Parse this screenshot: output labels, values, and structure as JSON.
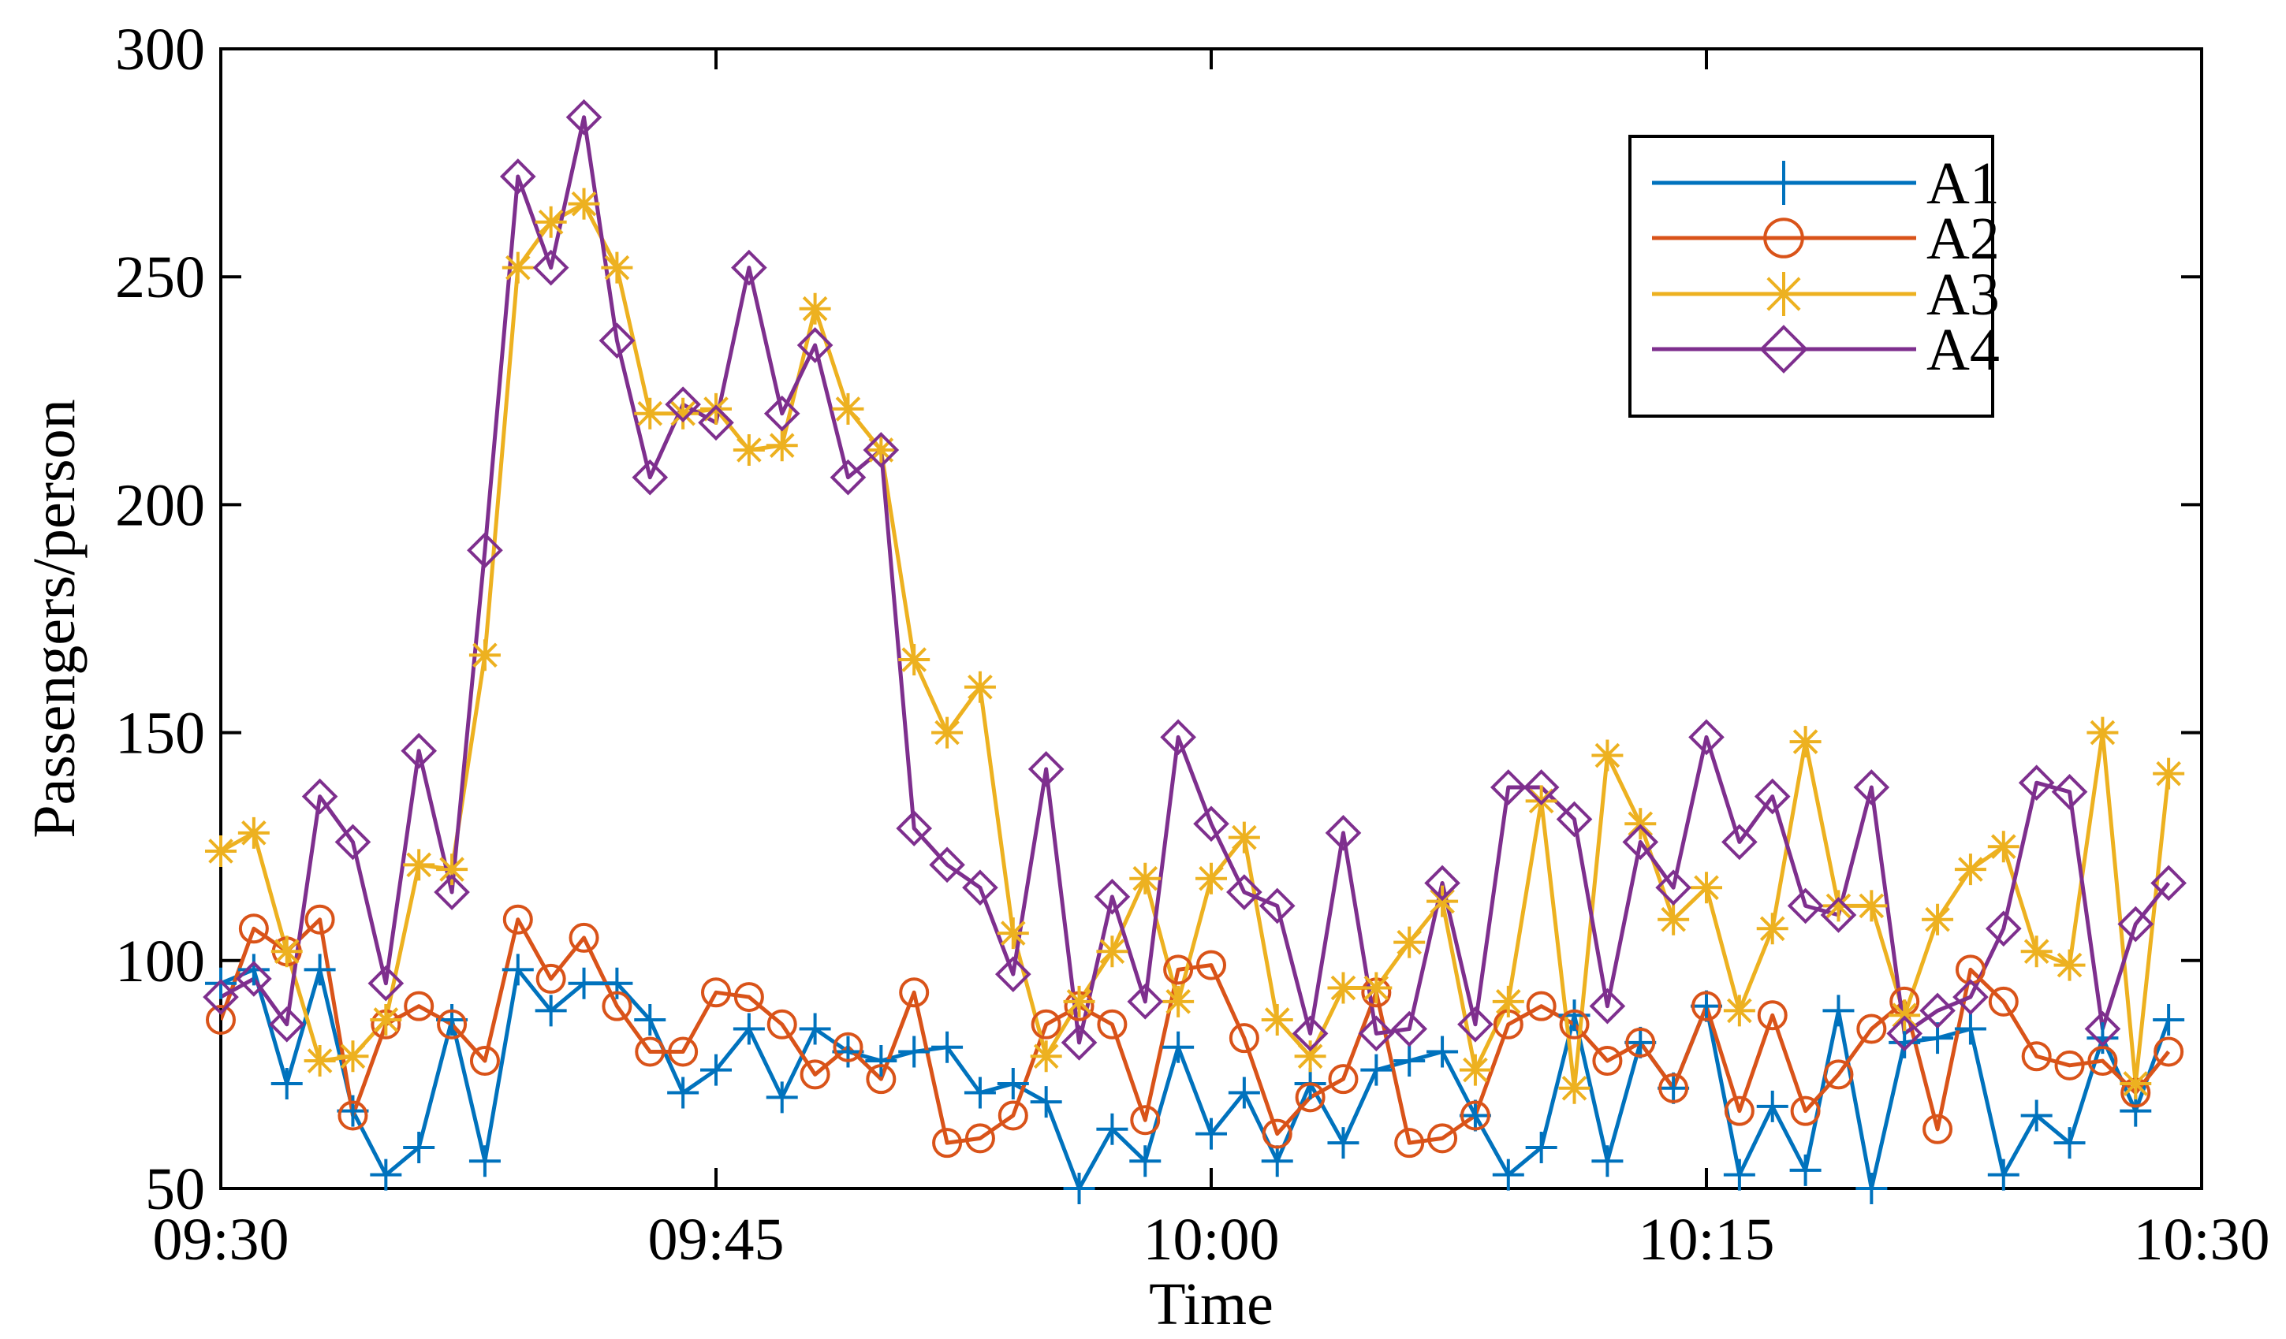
{
  "chart_data": {
    "type": "line",
    "title": "",
    "xlabel": "Time",
    "ylabel": "Passengers/person",
    "ylim": [
      50,
      300
    ],
    "xlim": [
      0,
      60
    ],
    "grid": false,
    "legend_position": "top-right",
    "yticks": [
      50,
      100,
      150,
      200,
      250,
      300
    ],
    "ytick_labels": [
      "50",
      "100",
      "150",
      "200",
      "250",
      "300"
    ],
    "xticks": [
      0,
      15,
      30,
      45,
      60
    ],
    "xtick_labels": [
      "09:30",
      "09:45",
      "10:00",
      "10:15",
      "10:30"
    ],
    "x_unit": "minutes after 09:30",
    "x": [
      0,
      1,
      2,
      3,
      4,
      5,
      6,
      7,
      8,
      9,
      10,
      11,
      12,
      13,
      14,
      15,
      16,
      17,
      18,
      19,
      20,
      21,
      22,
      23,
      24,
      25,
      26,
      27,
      28,
      29,
      30,
      31,
      32,
      33,
      34,
      35,
      36,
      37,
      38,
      39,
      40,
      41,
      42,
      43,
      44,
      45,
      46,
      47,
      48,
      49,
      50,
      51,
      52,
      53,
      54,
      55,
      56,
      57,
      58,
      59
    ],
    "series": [
      {
        "name": "A1",
        "color": "#0072BD",
        "marker": "plus",
        "values": [
          95,
          98,
          73,
          98,
          67,
          53,
          59,
          87,
          56,
          98,
          89,
          95,
          95,
          87,
          71,
          76,
          85,
          70,
          85,
          80,
          78,
          80,
          81,
          71,
          73,
          69,
          50,
          63,
          56,
          81,
          62,
          71,
          56,
          73,
          60,
          76,
          78,
          80,
          66,
          53,
          59,
          88,
          56,
          82,
          72,
          90,
          53,
          68,
          54,
          89,
          50,
          82,
          83,
          85,
          53,
          66,
          60,
          83,
          67,
          87
        ]
      },
      {
        "name": "A2",
        "color": "#D95319",
        "marker": "circle",
        "values": [
          87,
          107,
          102,
          109,
          66,
          86,
          90,
          86,
          78,
          109,
          96,
          105,
          90,
          80,
          80,
          93,
          92,
          86,
          75,
          81,
          74,
          93,
          60,
          61,
          66,
          86,
          90,
          86,
          65,
          98,
          99,
          83,
          62,
          70,
          74,
          93,
          60,
          61,
          66,
          86,
          90,
          86,
          78,
          82,
          72,
          90,
          67,
          88,
          67,
          75,
          85,
          91,
          63,
          98,
          91,
          79,
          77,
          78,
          71,
          80
        ]
      },
      {
        "name": "A3",
        "color": "#EDB120",
        "marker": "asterisk",
        "values": [
          124,
          128,
          102,
          78,
          79,
          87,
          121,
          120,
          167,
          252,
          262,
          266,
          252,
          220,
          220,
          221,
          212,
          213,
          243,
          221,
          212,
          166,
          150,
          160,
          106,
          79,
          91,
          102,
          118,
          91,
          118,
          127,
          87,
          79,
          94,
          94,
          104,
          113,
          76,
          91,
          135,
          72,
          145,
          130,
          109,
          116,
          89,
          107,
          148,
          112,
          112,
          88,
          109,
          120,
          125,
          102,
          99,
          150,
          73,
          141
        ]
      },
      {
        "name": "A4",
        "color": "#7E2F8E",
        "marker": "diamond",
        "values": [
          92,
          96,
          86,
          136,
          126,
          95,
          146,
          115,
          190,
          272,
          252,
          285,
          236,
          206,
          222,
          218,
          252,
          220,
          235,
          206,
          212,
          129,
          121,
          116,
          97,
          142,
          82,
          114,
          91,
          149,
          130,
          115,
          112,
          84,
          128,
          84,
          85,
          117,
          86,
          138,
          138,
          131,
          90,
          126,
          116,
          149,
          126,
          136,
          112,
          110,
          138,
          84,
          89,
          92,
          107,
          139,
          137,
          85,
          108,
          117
        ]
      }
    ]
  }
}
